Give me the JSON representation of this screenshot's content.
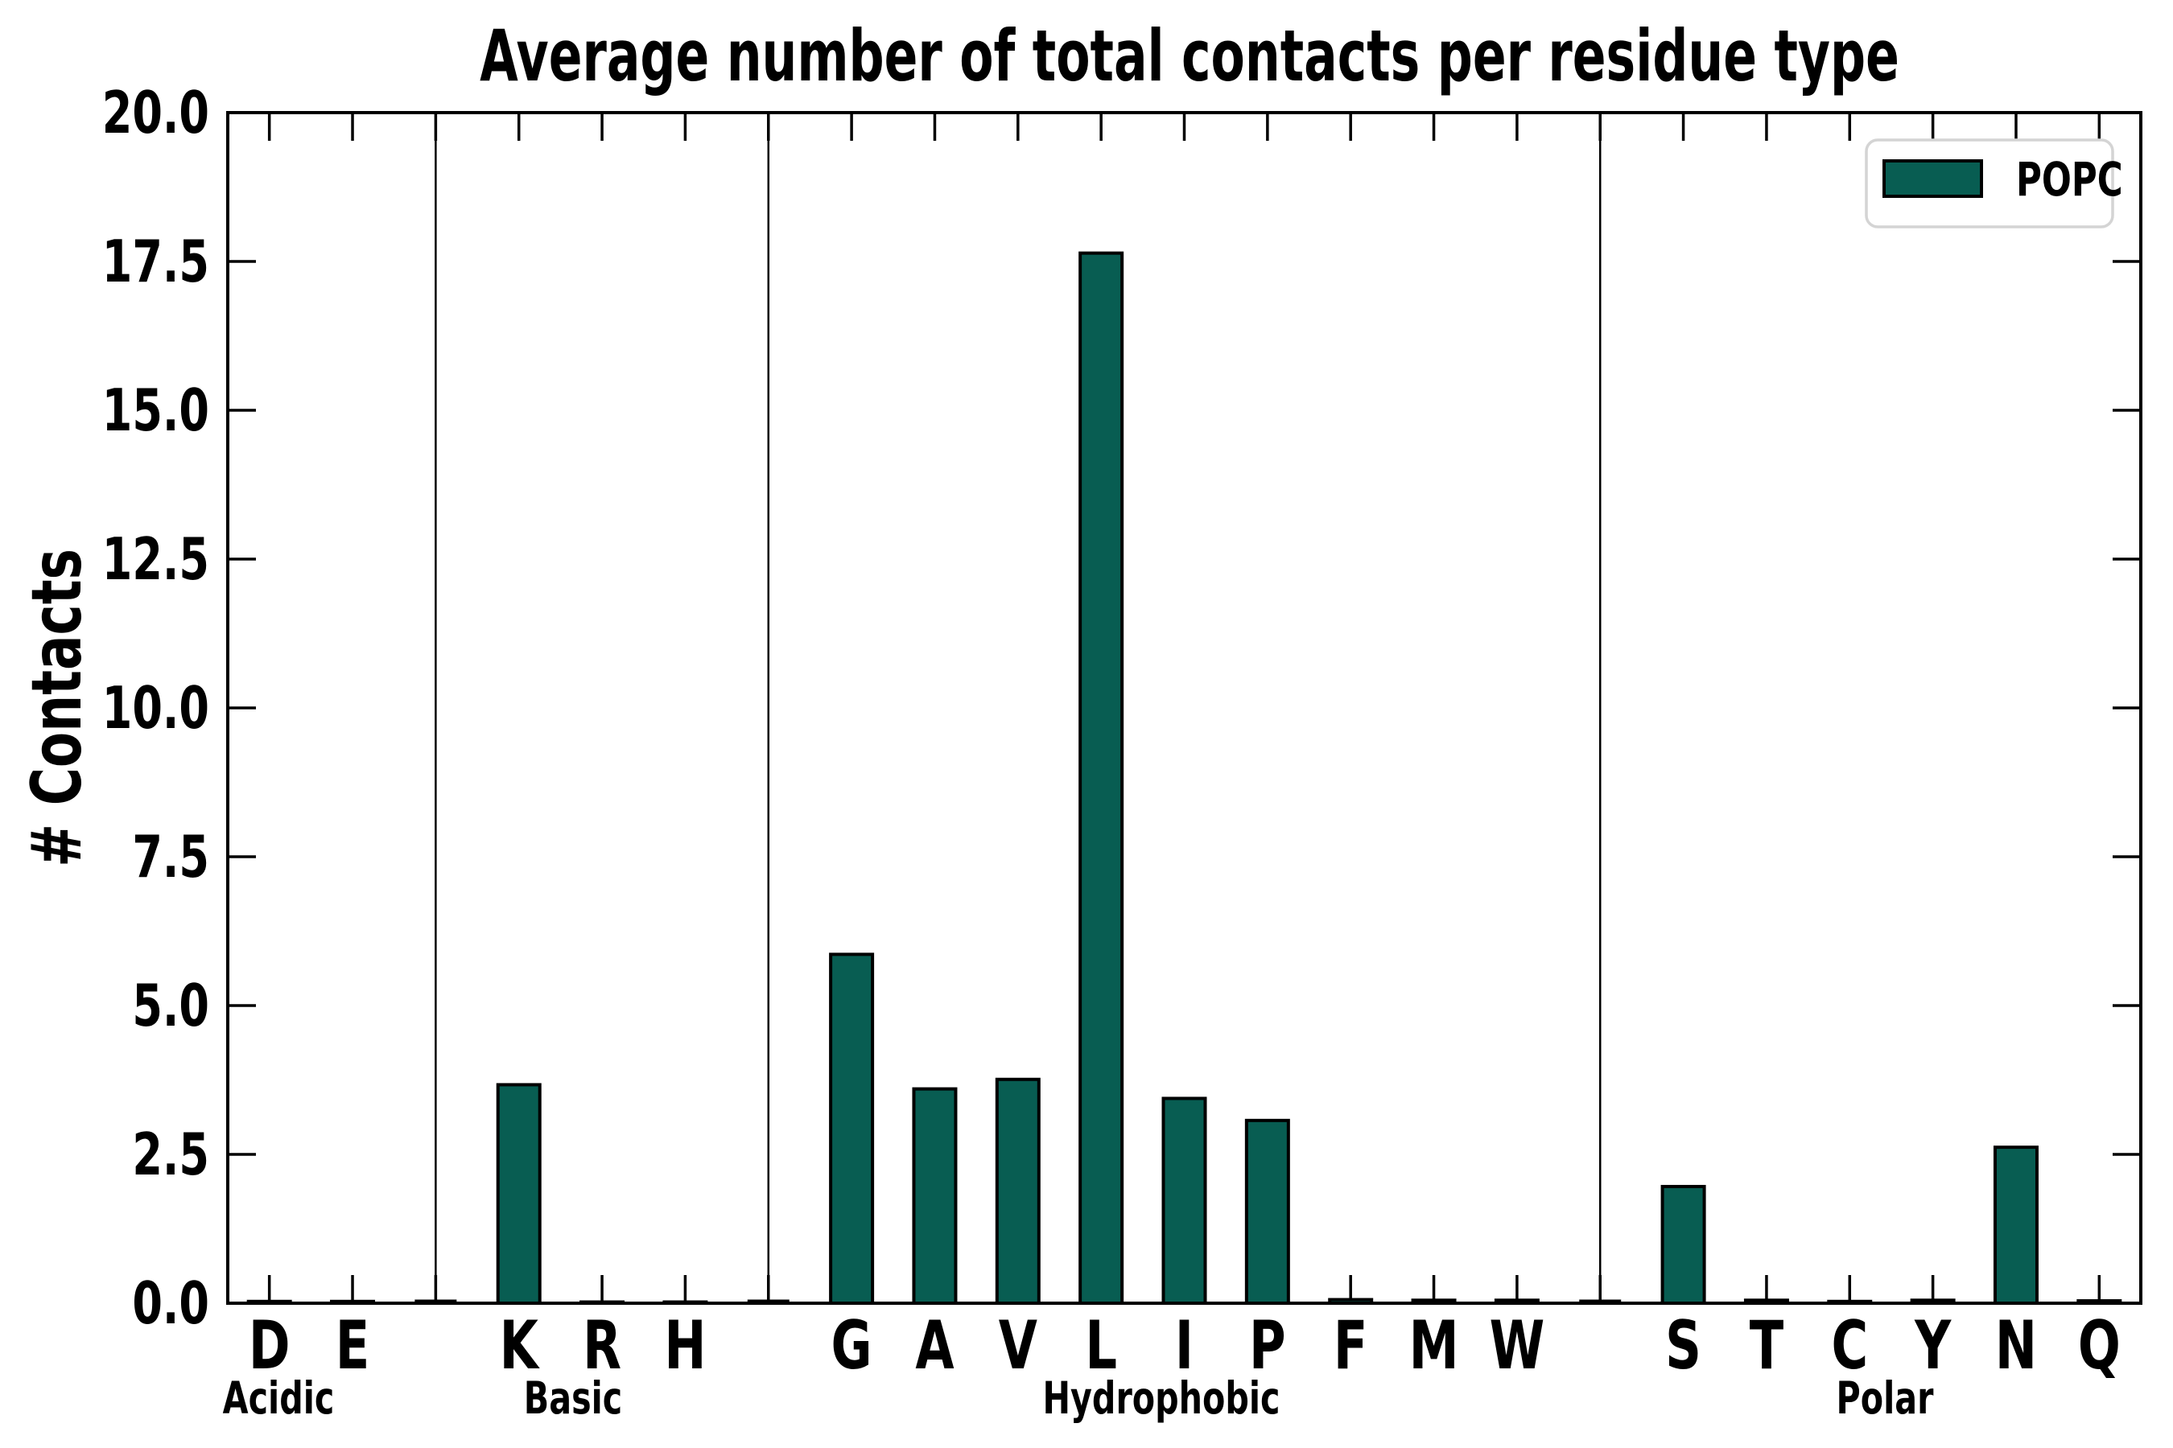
{
  "title": "Average number of total contacts per residue type",
  "y_axis": {
    "label": "# Contacts",
    "tick_labels": [
      "0.0",
      "2.5",
      "5.0",
      "7.5",
      "10.0",
      "12.5",
      "15.0",
      "17.5",
      "20.0"
    ]
  },
  "x_axis": {
    "group_labels": [
      "Acidic",
      "Basic",
      "Hydrophobic",
      "Polar"
    ]
  },
  "legend": {
    "entries": [
      {
        "label": "POPC",
        "color": "#085D52"
      }
    ]
  },
  "colors": {
    "bar_fill": "#085D52",
    "bar_edge": "#000000",
    "axis": "#000000",
    "legend_border": "#d4d4d4",
    "background": "#ffffff"
  },
  "chart_data": {
    "type": "bar",
    "title": "Average number of total contacts per residue type",
    "xlabel": "",
    "ylabel": "# Contacts",
    "ylim": [
      0,
      20
    ],
    "ytick_step": 2.5,
    "ytick_labels": [
      "0.0",
      "2.5",
      "5.0",
      "7.5",
      "10.0",
      "12.5",
      "15.0",
      "17.5",
      "20.0"
    ],
    "grid": false,
    "legend_position": "upper right",
    "series_name": "POPC",
    "groups": [
      {
        "label": "Acidic",
        "categories": [
          "D",
          "E"
        ],
        "values": [
          0.03,
          0.03
        ]
      },
      {
        "label": "Basic",
        "categories": [
          "K",
          "R",
          "H"
        ],
        "values": [
          3.67,
          0.02,
          0.02
        ]
      },
      {
        "label": "Hydrophobic",
        "categories": [
          "G",
          "A",
          "V",
          "L",
          "I",
          "P",
          "F",
          "M",
          "W"
        ],
        "values": [
          5.86,
          3.6,
          3.76,
          17.64,
          3.44,
          3.07,
          0.06,
          0.05,
          0.05
        ]
      },
      {
        "label": "Polar",
        "categories": [
          "S",
          "T",
          "C",
          "Y",
          "N",
          "Q"
        ],
        "values": [
          1.96,
          0.05,
          0.03,
          0.05,
          2.62,
          0.04
        ]
      }
    ],
    "categories": [
      "D",
      "E",
      "K",
      "R",
      "H",
      "G",
      "A",
      "V",
      "L",
      "I",
      "P",
      "F",
      "M",
      "W",
      "S",
      "T",
      "C",
      "Y",
      "N",
      "Q"
    ],
    "values": [
      0.03,
      0.03,
      3.67,
      0.02,
      0.02,
      5.86,
      3.6,
      3.76,
      17.64,
      3.44,
      3.07,
      0.06,
      0.05,
      0.05,
      1.96,
      0.05,
      0.03,
      0.05,
      2.62,
      0.04
    ]
  }
}
